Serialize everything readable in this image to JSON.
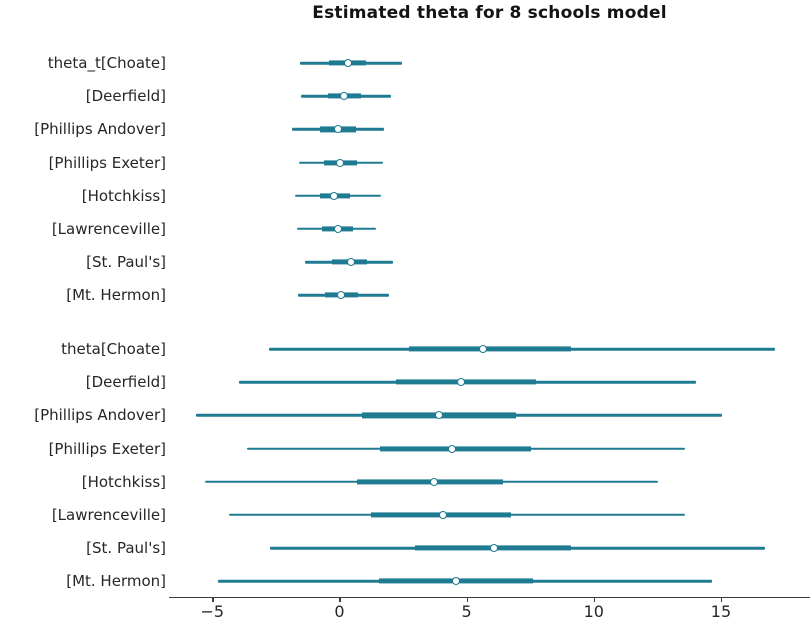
{
  "title": "Estimated theta for 8 schools model",
  "chart_data": {
    "type": "forest",
    "title": "Estimated theta for 8 schools model",
    "accent_color": "#1f7b92",
    "axis_color": "#3c3c3c",
    "background": "#ffffff",
    "grid": false,
    "legend": false,
    "xlim": [
      -6.7,
      18.5
    ],
    "x_ticks": [
      {
        "value": -5,
        "label": "−5"
      },
      {
        "value": 0,
        "label": "0"
      },
      {
        "value": 5,
        "label": "5"
      },
      {
        "value": 10,
        "label": "10"
      },
      {
        "value": 15,
        "label": "15"
      }
    ],
    "marker_style": "open-circle",
    "groups": [
      {
        "name": "theta_t",
        "rows": [
          {
            "label": "theta_t[Choate]",
            "median": 0.35,
            "interval": [
              -1.55,
              2.45
            ],
            "quartile": [
              -0.42,
              1.05
            ]
          },
          {
            "label": "[Deerfield]",
            "median": 0.17,
            "interval": [
              -1.5,
              2.02
            ],
            "quartile": [
              -0.46,
              0.85
            ]
          },
          {
            "label": "[Phillips Andover]",
            "median": -0.05,
            "interval": [
              -1.85,
              1.76
            ],
            "quartile": [
              -0.78,
              0.65
            ]
          },
          {
            "label": "[Phillips Exeter]",
            "median": 0.04,
            "interval": [
              -1.6,
              1.7
            ],
            "quartile": [
              -0.59,
              0.68
            ]
          },
          {
            "label": "[Hotchkiss]",
            "median": -0.2,
            "interval": [
              -1.76,
              1.63
            ],
            "quartile": [
              -0.78,
              0.42
            ]
          },
          {
            "label": "[Lawrenceville]",
            "median": -0.05,
            "interval": [
              -1.67,
              1.44
            ],
            "quartile": [
              -0.68,
              0.55
            ]
          },
          {
            "label": "[St. Paul's]",
            "median": 0.47,
            "interval": [
              -1.37,
              2.11
            ],
            "quartile": [
              -0.29,
              1.07
            ]
          },
          {
            "label": "[Mt. Hermon]",
            "median": 0.08,
            "interval": [
              -1.63,
              1.96
            ],
            "quartile": [
              -0.55,
              0.72
            ]
          }
        ]
      },
      {
        "name": "theta",
        "rows": [
          {
            "label": "theta[Choate]",
            "median": 5.65,
            "interval": [
              -2.77,
              17.12
            ],
            "quartile": [
              2.75,
              9.1
            ]
          },
          {
            "label": "[Deerfield]",
            "median": 4.79,
            "interval": [
              -3.93,
              14.03
            ],
            "quartile": [
              2.23,
              7.74
            ]
          },
          {
            "label": "[Phillips Andover]",
            "median": 3.91,
            "interval": [
              -5.63,
              15.05
            ],
            "quartile": [
              0.89,
              6.95
            ]
          },
          {
            "label": "[Phillips Exeter]",
            "median": 4.43,
            "interval": [
              -3.62,
              13.59
            ],
            "quartile": [
              1.6,
              7.55
            ]
          },
          {
            "label": "[Hotchkiss]",
            "median": 3.73,
            "interval": [
              -5.29,
              12.53
            ],
            "quartile": [
              0.69,
              6.44
            ]
          },
          {
            "label": "[Lawrenceville]",
            "median": 4.09,
            "interval": [
              -4.35,
              13.59
            ],
            "quartile": [
              1.25,
              6.76
            ]
          },
          {
            "label": "[St. Paul's]",
            "median": 6.08,
            "interval": [
              -2.72,
              16.73
            ],
            "quartile": [
              2.99,
              9.12
            ]
          },
          {
            "label": "[Mt. Hermon]",
            "median": 4.59,
            "interval": [
              -4.77,
              14.66
            ],
            "quartile": [
              1.57,
              7.61
            ]
          }
        ]
      }
    ]
  }
}
